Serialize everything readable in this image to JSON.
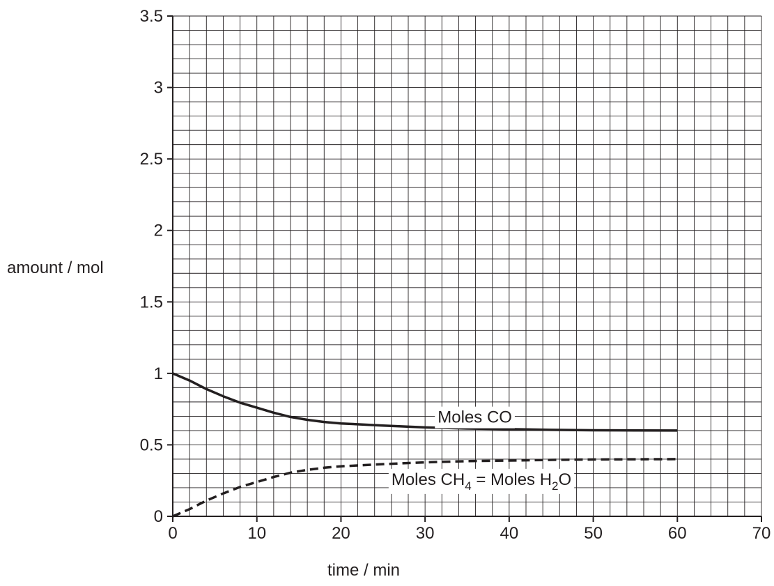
{
  "chart_data": {
    "type": "line",
    "title": "",
    "xlabel": "time / min",
    "ylabel": "amount / mol",
    "xlim": [
      0,
      70
    ],
    "ylim": [
      0,
      3.5
    ],
    "x_ticks": [
      0,
      10,
      20,
      30,
      40,
      50,
      60,
      70
    ],
    "x_tick_labels": [
      "0",
      "10",
      "20",
      "30",
      "40",
      "50",
      "60",
      "70"
    ],
    "y_ticks": [
      0,
      0.5,
      1,
      1.5,
      2,
      2.5,
      3,
      3.5
    ],
    "y_tick_labels": [
      "0",
      "0.5",
      "1",
      "1.5",
      "2",
      "2.5",
      "3",
      "3.5"
    ],
    "grid": true,
    "grid_minor_x": 2,
    "grid_minor_y": 0.1,
    "legend": "none",
    "series": [
      {
        "name": "Moles CO",
        "label_main": "Moles CO",
        "style": "solid",
        "color": "#231f20",
        "x": [
          0,
          2,
          4,
          6,
          8,
          10,
          12,
          14,
          16,
          18,
          20,
          25,
          30,
          35,
          40,
          45,
          50,
          55,
          60
        ],
        "y": [
          1.0,
          0.95,
          0.89,
          0.84,
          0.795,
          0.76,
          0.725,
          0.695,
          0.675,
          0.66,
          0.65,
          0.635,
          0.622,
          0.614,
          0.61,
          0.605,
          0.602,
          0.601,
          0.6
        ]
      },
      {
        "name": "Moles CH4 = Moles H2O",
        "label_parts": [
          "Moles CH",
          "4",
          " = Moles H",
          "2",
          "O"
        ],
        "style": "dashed",
        "color": "#231f20",
        "x": [
          0,
          2,
          4,
          6,
          8,
          10,
          12,
          14,
          16,
          18,
          20,
          25,
          30,
          35,
          40,
          45,
          50,
          55,
          60
        ],
        "y": [
          0.0,
          0.05,
          0.11,
          0.16,
          0.205,
          0.24,
          0.275,
          0.305,
          0.325,
          0.34,
          0.35,
          0.365,
          0.378,
          0.386,
          0.39,
          0.395,
          0.398,
          0.399,
          0.4
        ]
      }
    ]
  }
}
